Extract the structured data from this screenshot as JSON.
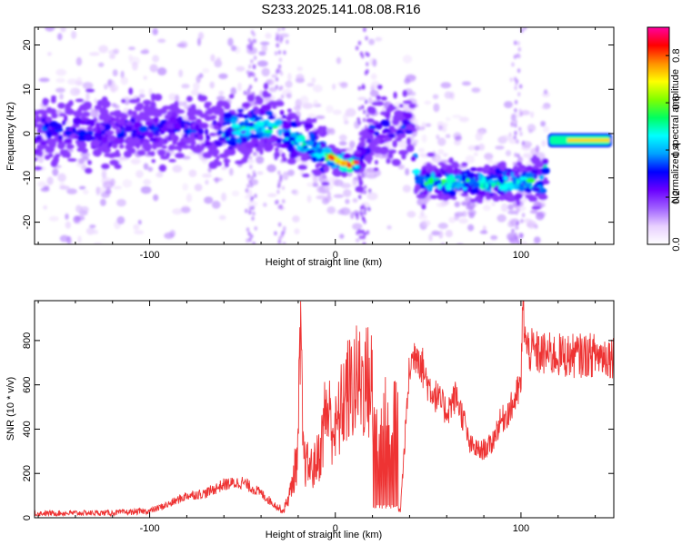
{
  "title": "S233.2025.141.08.08.R16",
  "chart_data": [
    {
      "type": "heatmap",
      "xlabel": "Height of straight line (km)",
      "ylabel": "Frequency (Hz)",
      "xlim": [
        -162,
        150
      ],
      "ylim": [
        -25,
        24
      ],
      "xticks": [
        -100,
        0,
        100
      ],
      "xtick_labels": [
        "-100",
        "0",
        "100"
      ],
      "yticks": [
        -20,
        -10,
        0,
        10,
        20
      ],
      "ytick_labels": [
        "-20",
        "-10",
        "0",
        "10",
        "20"
      ],
      "colorbar": {
        "label": "Normalized spectral amplitude",
        "range": [
          0.0,
          0.92
        ],
        "ticks": [
          0.0,
          0.2,
          0.4,
          0.6,
          0.8
        ],
        "tick_labels": [
          "0.0",
          "0.2",
          "0.4",
          "0.6",
          "0.8"
        ],
        "colormap": [
          "#ffffff",
          "#e8d0ff",
          "#a060ff",
          "#6a00ff",
          "#0000ff",
          "#00a0ff",
          "#00ffff",
          "#00ff60",
          "#80ff00",
          "#ffff00",
          "#ff9000",
          "#ff0000",
          "#ff00a0"
        ]
      },
      "ridge": [
        {
          "x": -160,
          "f": 1
        },
        {
          "x": -130,
          "f": 0
        },
        {
          "x": -100,
          "f": 1
        },
        {
          "x": -80,
          "f": 1
        },
        {
          "x": -60,
          "f": 0
        },
        {
          "x": -45,
          "f": 2
        },
        {
          "x": -30,
          "f": 1
        },
        {
          "x": -18,
          "f": -2
        },
        {
          "x": -8,
          "f": -4
        },
        {
          "x": 0,
          "f": -6
        },
        {
          "x": 8,
          "f": -7
        },
        {
          "x": 14,
          "f": -6
        },
        {
          "x": 20,
          "f": 1
        },
        {
          "x": 32,
          "f": 1
        },
        {
          "x": 40,
          "f": 2
        },
        {
          "x": 45,
          "f": -11
        },
        {
          "x": 60,
          "f": -11
        },
        {
          "x": 80,
          "f": -11
        },
        {
          "x": 100,
          "f": -11
        },
        {
          "x": 112,
          "f": -11
        },
        {
          "x": 115,
          "f": -1.5
        },
        {
          "x": 150,
          "f": -1.5
        }
      ]
    },
    {
      "type": "line",
      "xlabel": "Height of straight line (km)",
      "ylabel": "SNR (10 * v/v)",
      "xlim": [
        -162,
        150
      ],
      "ylim": [
        0,
        980
      ],
      "xticks": [
        -100,
        0,
        100
      ],
      "xtick_labels": [
        "-100",
        "0",
        "100"
      ],
      "yticks": [
        0,
        200,
        400,
        600,
        800
      ],
      "ytick_labels": [
        "0",
        "200",
        "400",
        "600",
        "800"
      ],
      "color": "#ee3333",
      "envelope": [
        {
          "x": -162,
          "snr": 20
        },
        {
          "x": -120,
          "snr": 22
        },
        {
          "x": -100,
          "snr": 30
        },
        {
          "x": -90,
          "snr": 60
        },
        {
          "x": -80,
          "snr": 100
        },
        {
          "x": -70,
          "snr": 110
        },
        {
          "x": -60,
          "snr": 150
        },
        {
          "x": -50,
          "snr": 160
        },
        {
          "x": -40,
          "snr": 110
        },
        {
          "x": -33,
          "snr": 60
        },
        {
          "x": -28,
          "snr": 30
        },
        {
          "x": -24,
          "snr": 120
        },
        {
          "x": -20,
          "snr": 300
        },
        {
          "x": -19,
          "snr": 800
        },
        {
          "x": -17,
          "snr": 250
        },
        {
          "x": -12,
          "snr": 220
        },
        {
          "x": -8,
          "snr": 300
        },
        {
          "x": -5,
          "snr": 500
        },
        {
          "x": 0,
          "snr": 380
        },
        {
          "x": 5,
          "snr": 550
        },
        {
          "x": 10,
          "snr": 600
        },
        {
          "x": 15,
          "snr": 620
        },
        {
          "x": 20,
          "snr": 600
        },
        {
          "x": 22,
          "snr": 50
        },
        {
          "x": 26,
          "snr": 50
        },
        {
          "x": 32,
          "snr": 50
        },
        {
          "x": 35,
          "snr": 30
        },
        {
          "x": 40,
          "snr": 680
        },
        {
          "x": 44,
          "snr": 760
        },
        {
          "x": 50,
          "snr": 600
        },
        {
          "x": 60,
          "snr": 480
        },
        {
          "x": 65,
          "snr": 550
        },
        {
          "x": 70,
          "snr": 420
        },
        {
          "x": 72,
          "snr": 330
        },
        {
          "x": 78,
          "snr": 300
        },
        {
          "x": 84,
          "snr": 330
        },
        {
          "x": 88,
          "snr": 420
        },
        {
          "x": 95,
          "snr": 500
        },
        {
          "x": 100,
          "snr": 600
        },
        {
          "x": 101,
          "snr": 960
        },
        {
          "x": 103,
          "snr": 760
        },
        {
          "x": 110,
          "snr": 740
        },
        {
          "x": 125,
          "snr": 730
        },
        {
          "x": 140,
          "snr": 735
        },
        {
          "x": 150,
          "snr": 730
        }
      ]
    }
  ]
}
